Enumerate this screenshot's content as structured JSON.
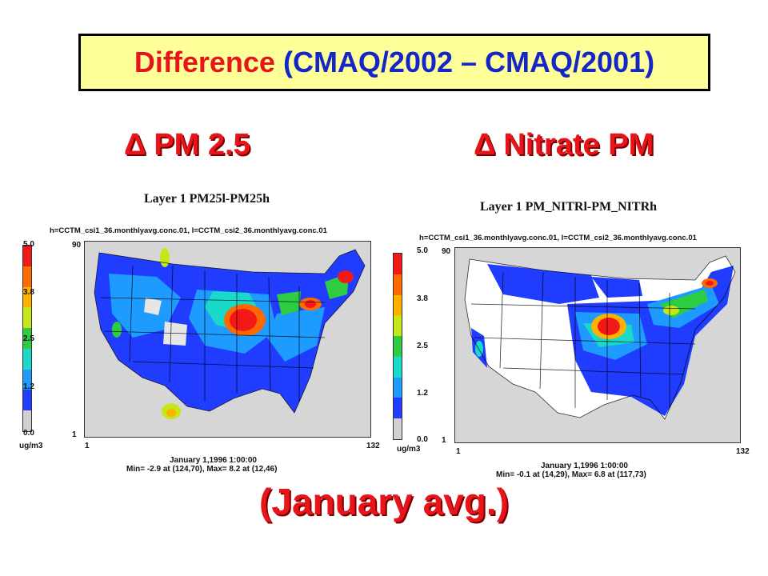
{
  "title": {
    "word1": "Difference",
    "rest": "(CMAQ/2002 – CMAQ/2001)"
  },
  "headings": {
    "delta_symbol": "Δ",
    "left": "PM 2.5",
    "right": "Nitrate PM"
  },
  "panels": {
    "left": {
      "layer_title": "Layer 1  PM25l-PM25h",
      "file_line": "h=CCTM_csi1_36.monthlyavg.conc.01, l=CCTM_csi2_36.monthlyavg.conc.01",
      "ticks": [
        "5.0",
        "3.8",
        "2.5",
        "1.2",
        "0.0"
      ],
      "unit": "ug/m3",
      "y_top": "90",
      "y_bottom": "1",
      "x_left": "1",
      "x_right": "132",
      "date": "January 1,1996 1:00:00",
      "minmax": "Min=    -2.9 at (124,70), Max=     8.2 at (12,46)"
    },
    "right": {
      "layer_title": "Layer 1  PM_NITRl-PM_NITRh",
      "file_line": "h=CCTM_csi1_36.monthlyavg.conc.01, l=CCTM_csi2_36.monthlyavg.conc.01",
      "ticks": [
        "5.0",
        "3.8",
        "2.5",
        "1.2",
        "0.0"
      ],
      "unit": "ug/m3",
      "y_top": "90",
      "y_bottom": "1",
      "x_left": "1",
      "x_right": "132",
      "date": "January 1,1996 1:00:00",
      "minmax": "Min=    -0.1 at (14,29), Max=     6.8 at (117,73)"
    }
  },
  "colorbar_colors": [
    "#d0d0d0",
    "#1f3cff",
    "#1e9bff",
    "#19d9c8",
    "#2ecc40",
    "#c7e61a",
    "#ffb000",
    "#ff6a00",
    "#f21818"
  ],
  "bottom_note": "(January avg.)"
}
